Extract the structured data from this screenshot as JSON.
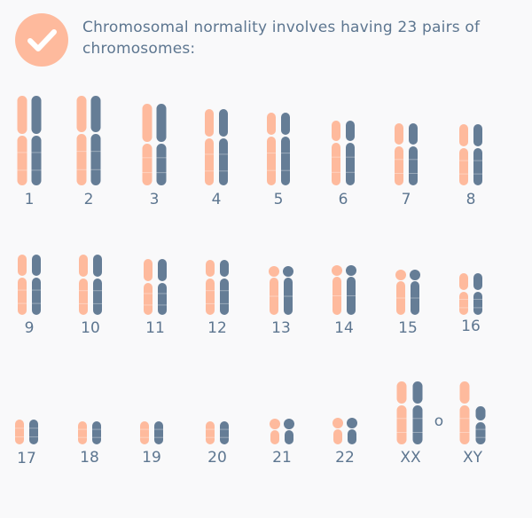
{
  "heading": "Chromosomal normality involves having 23 pairs of chromosomes:",
  "icon": "check-icon",
  "colors": {
    "maternal": "#feba9d",
    "paternal": "#657d96",
    "badge": "#feba9d",
    "text": "#5d7690",
    "background": "#f9f9fa"
  },
  "separator": "o",
  "chromosomes": [
    {
      "label": "1"
    },
    {
      "label": "2"
    },
    {
      "label": "3"
    },
    {
      "label": "4"
    },
    {
      "label": "5"
    },
    {
      "label": "6"
    },
    {
      "label": "7"
    },
    {
      "label": "8"
    },
    {
      "label": "9"
    },
    {
      "label": "10"
    },
    {
      "label": "11"
    },
    {
      "label": "12"
    },
    {
      "label": "13"
    },
    {
      "label": "14"
    },
    {
      "label": "15"
    },
    {
      "label": "16"
    },
    {
      "label": "17"
    },
    {
      "label": "18"
    },
    {
      "label": "19"
    },
    {
      "label": "20"
    },
    {
      "label": "21"
    },
    {
      "label": "22"
    },
    {
      "label": "XX"
    },
    {
      "label": "XY"
    }
  ]
}
